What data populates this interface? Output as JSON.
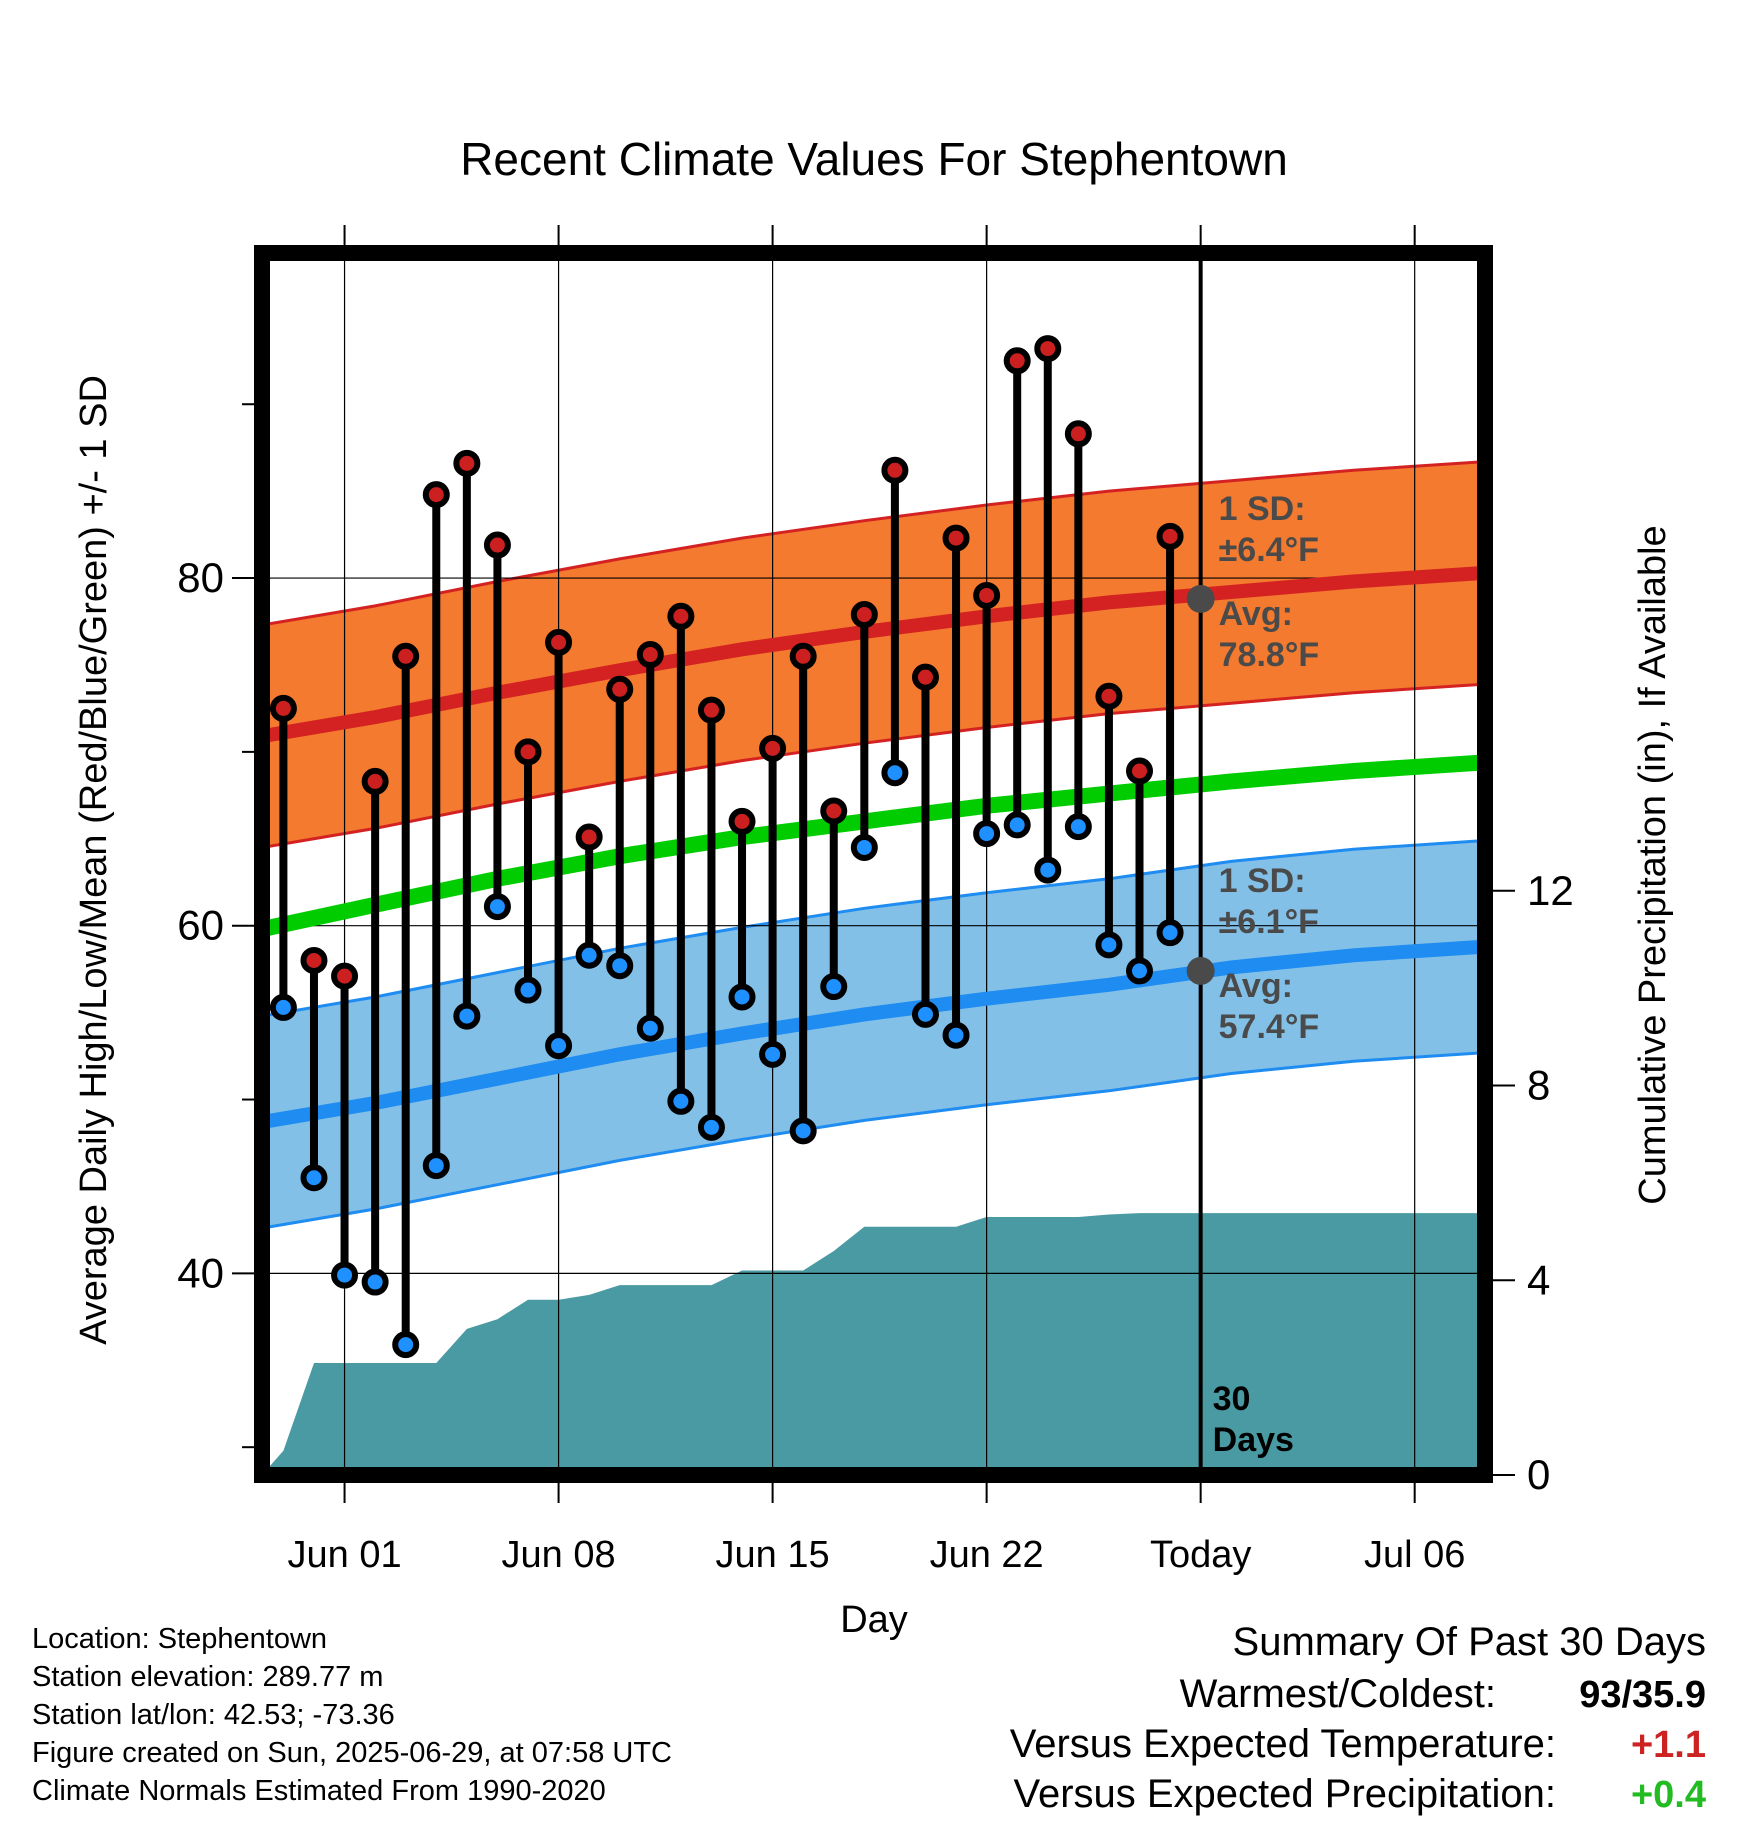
{
  "chart_data": {
    "type": "line",
    "title": "Recent Climate Values For Stephentown",
    "xlabel": "Day",
    "ylabel": "Average Daily High/Low/Mean (Red/Blue/Green) +/- 1 SD",
    "y2label": "Cumulative Precipitation (in), If Available",
    "x_tick_labels": [
      "Jun 01",
      "Jun 08",
      "Jun 15",
      "Jun 22",
      "Today",
      "Jul 06"
    ],
    "x_tick_days": [
      1,
      8,
      15,
      22,
      29,
      36
    ],
    "y_ticks": [
      40,
      60,
      80
    ],
    "y_minor_ticks": [
      30,
      50,
      70,
      90
    ],
    "ylim": [
      28.4,
      98.7
    ],
    "y2_ticks": [
      0,
      4,
      8,
      12
    ],
    "y2lim": [
      0,
      25.1
    ],
    "xlim": [
      -1.7,
      38.3
    ],
    "grid": true,
    "days": [
      -1,
      0,
      1,
      2,
      3,
      4,
      5,
      6,
      7,
      8,
      9,
      10,
      11,
      12,
      13,
      14,
      15,
      16,
      17,
      18,
      19,
      20,
      21,
      22,
      23,
      24,
      25,
      26,
      27,
      28
    ],
    "highs": [
      72.5,
      58.0,
      57.1,
      68.3,
      75.5,
      84.8,
      86.6,
      81.9,
      70.0,
      76.3,
      65.1,
      73.6,
      75.6,
      77.8,
      72.4,
      66.0,
      70.2,
      75.5,
      66.6,
      77.9,
      86.2,
      74.3,
      82.3,
      79.0,
      92.5,
      93.2,
      88.3,
      73.2,
      68.9,
      82.4
    ],
    "lows": [
      55.3,
      45.5,
      39.9,
      39.5,
      35.9,
      46.2,
      54.8,
      61.1,
      56.3,
      53.1,
      58.3,
      57.7,
      54.1,
      49.9,
      48.4,
      55.9,
      52.6,
      48.2,
      56.5,
      64.5,
      68.8,
      54.9,
      53.7,
      65.3,
      65.8,
      63.2,
      65.7,
      58.9,
      57.4,
      59.6
    ],
    "normal_high": {
      "days": [
        -1.7,
        2,
        6,
        10,
        14,
        18,
        22,
        26,
        30,
        34,
        38.3
      ],
      "avg": [
        70.9,
        72.0,
        73.4,
        74.7,
        75.9,
        76.9,
        77.8,
        78.6,
        79.2,
        79.8,
        80.3
      ],
      "sd": 6.4
    },
    "normal_low": {
      "days": [
        -1.7,
        2,
        6,
        10,
        14,
        18,
        22,
        26,
        30,
        34,
        38.3
      ],
      "avg": [
        48.7,
        49.8,
        51.2,
        52.6,
        53.8,
        54.9,
        55.8,
        56.6,
        57.6,
        58.3,
        58.8
      ],
      "sd": 6.1
    },
    "normal_mean": {
      "days": [
        -1.7,
        2,
        6,
        10,
        14,
        18,
        22,
        26,
        30,
        34,
        38.3
      ],
      "avg": [
        59.8,
        61.2,
        62.7,
        64.0,
        65.1,
        66.0,
        66.9,
        67.6,
        68.3,
        68.9,
        69.4
      ]
    },
    "precip_cumulative": {
      "days": [
        -1.7,
        -1,
        0,
        1,
        2,
        3,
        4,
        5,
        6,
        7,
        8,
        9,
        10,
        11,
        12,
        13,
        14,
        15,
        16,
        17,
        18,
        19,
        20,
        21,
        22,
        23,
        24,
        25,
        26,
        27,
        28,
        29,
        38.3
      ],
      "values": [
        0,
        0.5,
        2.3,
        2.3,
        2.3,
        2.3,
        2.3,
        3.0,
        3.2,
        3.6,
        3.6,
        3.7,
        3.9,
        3.9,
        3.9,
        3.9,
        4.2,
        4.2,
        4.2,
        4.6,
        5.1,
        5.1,
        5.1,
        5.1,
        5.3,
        5.3,
        5.3,
        5.3,
        5.35,
        5.38,
        5.38,
        5.38,
        5.38
      ]
    },
    "today_day": 29,
    "annotations": {
      "high_sd_label": "1 SD:",
      "high_sd_value": "±6.4°F",
      "high_avg_label": "Avg:",
      "high_avg_value": "78.8°F",
      "low_sd_label": "1 SD:",
      "low_sd_value": "±6.1°F",
      "low_avg_label": "Avg:",
      "low_avg_value": "57.4°F",
      "today_avg_high": 78.8,
      "today_avg_low": 57.4,
      "days_label_1": "30",
      "days_label_2": "Days"
    },
    "colors": {
      "high_band": "#f37a2e",
      "high_line": "#d42222",
      "low_band": "#82c0e8",
      "low_line": "#1e8cf0",
      "mean_line": "#00cc00",
      "precip": "#4a9aa3",
      "high_dot": "#cc2020",
      "low_dot": "#1e90ff",
      "annotation": "#4a4a4a"
    }
  },
  "info": {
    "location": "Location: Stephentown",
    "elevation": "Station elevation: 289.77 m",
    "latlon": "Station lat/lon: 42.53; -73.36",
    "created": "Figure created on Sun, 2025-06-29, at 07:58 UTC",
    "normals": "Climate Normals Estimated From 1990-2020"
  },
  "summary": {
    "title": "Summary Of Past 30 Days",
    "warmest_label": "Warmest/Coldest:",
    "warmest_value": "93/35.9",
    "temp_label": "Versus Expected Temperature:",
    "temp_value": "+1.1",
    "temp_color": "#cc2222",
    "precip_label": "Versus Expected Precipitation:",
    "precip_value": "+0.4",
    "precip_color": "#22bb22"
  }
}
